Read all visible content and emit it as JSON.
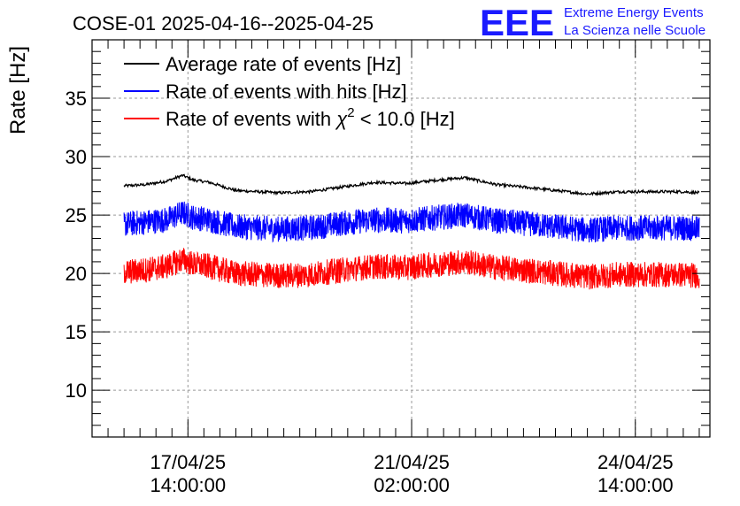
{
  "header": {
    "title": "COSE-01 2025-04-16--2025-04-25",
    "logo_text": "EEE",
    "logo_line1": "Extreme Energy Events",
    "logo_line2": "La Scienza nelle Scuole"
  },
  "chart_data": {
    "type": "line",
    "ylabel": "Rate [Hz]",
    "ylim": [
      6,
      40
    ],
    "y_ticks": [
      10,
      15,
      20,
      25,
      30,
      35
    ],
    "x_range": [
      "2025-04-16T02:00:00",
      "2025-04-25T18:00:00"
    ],
    "x_ticks": [
      {
        "value": "2025-04-17T14:00:00",
        "line1": "17/04/25",
        "line2": "14:00:00"
      },
      {
        "value": "2025-04-21T02:00:00",
        "line1": "21/04/25",
        "line2": "02:00:00"
      },
      {
        "value": "2025-04-24T14:00:00",
        "line1": "24/04/25",
        "line2": "14:00:00"
      }
    ],
    "grid": true,
    "legend_position": "top-left",
    "series": [
      {
        "name": "Average rate of events [Hz]",
        "color": "#000000",
        "noise": 0.12,
        "x": [
          "2025-04-16T14:00",
          "2025-04-16T22:00",
          "2025-04-17T06:00",
          "2025-04-17T12:00",
          "2025-04-17T16:00",
          "2025-04-17T22:00",
          "2025-04-18T08:00",
          "2025-04-18T16:00",
          "2025-04-19T00:00",
          "2025-04-19T12:00",
          "2025-04-20T00:00",
          "2025-04-20T12:00",
          "2025-04-21T00:00",
          "2025-04-21T12:00",
          "2025-04-21T22:00",
          "2025-04-22T10:00",
          "2025-04-22T20:00",
          "2025-04-23T08:00",
          "2025-04-23T20:00",
          "2025-04-24T08:00",
          "2025-04-24T20:00",
          "2025-04-25T08:00",
          "2025-04-25T14:00"
        ],
        "y": [
          27.5,
          27.6,
          27.9,
          28.4,
          28.0,
          27.8,
          27.1,
          27.0,
          26.9,
          27.0,
          27.4,
          27.8,
          27.7,
          28.0,
          28.2,
          27.6,
          27.4,
          27.1,
          26.8,
          27.0,
          27.0,
          27.0,
          26.9
        ]
      },
      {
        "name": "Rate of events with hits [Hz]",
        "color": "#0000ff",
        "noise": 1.1,
        "x": [
          "2025-04-16T14:00",
          "2025-04-16T22:00",
          "2025-04-17T06:00",
          "2025-04-17T12:00",
          "2025-04-17T16:00",
          "2025-04-17T22:00",
          "2025-04-18T08:00",
          "2025-04-18T16:00",
          "2025-04-19T00:00",
          "2025-04-19T12:00",
          "2025-04-20T00:00",
          "2025-04-20T12:00",
          "2025-04-21T00:00",
          "2025-04-21T12:00",
          "2025-04-21T22:00",
          "2025-04-22T10:00",
          "2025-04-22T20:00",
          "2025-04-23T08:00",
          "2025-04-23T20:00",
          "2025-04-24T08:00",
          "2025-04-24T20:00",
          "2025-04-25T08:00",
          "2025-04-25T14:00"
        ],
        "y": [
          24.2,
          24.4,
          24.6,
          25.2,
          24.8,
          24.6,
          24.0,
          23.9,
          23.8,
          23.9,
          24.3,
          24.6,
          24.5,
          24.8,
          25.0,
          24.5,
          24.3,
          24.0,
          23.7,
          23.9,
          23.9,
          23.9,
          23.8
        ]
      },
      {
        "name": "Rate of events with χ² < 10.0 [Hz]",
        "name_parts": {
          "pre": "Rate of events with ",
          "sym": "χ",
          "sup": "2",
          "post": " < 10.0 [Hz]"
        },
        "color": "#ff0000",
        "noise": 1.1,
        "x": [
          "2025-04-16T14:00",
          "2025-04-16T22:00",
          "2025-04-17T06:00",
          "2025-04-17T12:00",
          "2025-04-17T16:00",
          "2025-04-17T22:00",
          "2025-04-18T08:00",
          "2025-04-18T16:00",
          "2025-04-19T00:00",
          "2025-04-19T12:00",
          "2025-04-20T00:00",
          "2025-04-20T12:00",
          "2025-04-21T00:00",
          "2025-04-21T12:00",
          "2025-04-21T22:00",
          "2025-04-22T10:00",
          "2025-04-22T20:00",
          "2025-04-23T08:00",
          "2025-04-23T20:00",
          "2025-04-24T08:00",
          "2025-04-24T20:00",
          "2025-04-25T08:00",
          "2025-04-25T14:00"
        ],
        "y": [
          20.1,
          20.3,
          20.6,
          21.2,
          20.8,
          20.6,
          20.0,
          19.9,
          19.8,
          19.9,
          20.3,
          20.6,
          20.5,
          20.8,
          21.0,
          20.5,
          20.3,
          20.0,
          19.7,
          19.9,
          19.9,
          19.9,
          19.8
        ]
      }
    ]
  }
}
